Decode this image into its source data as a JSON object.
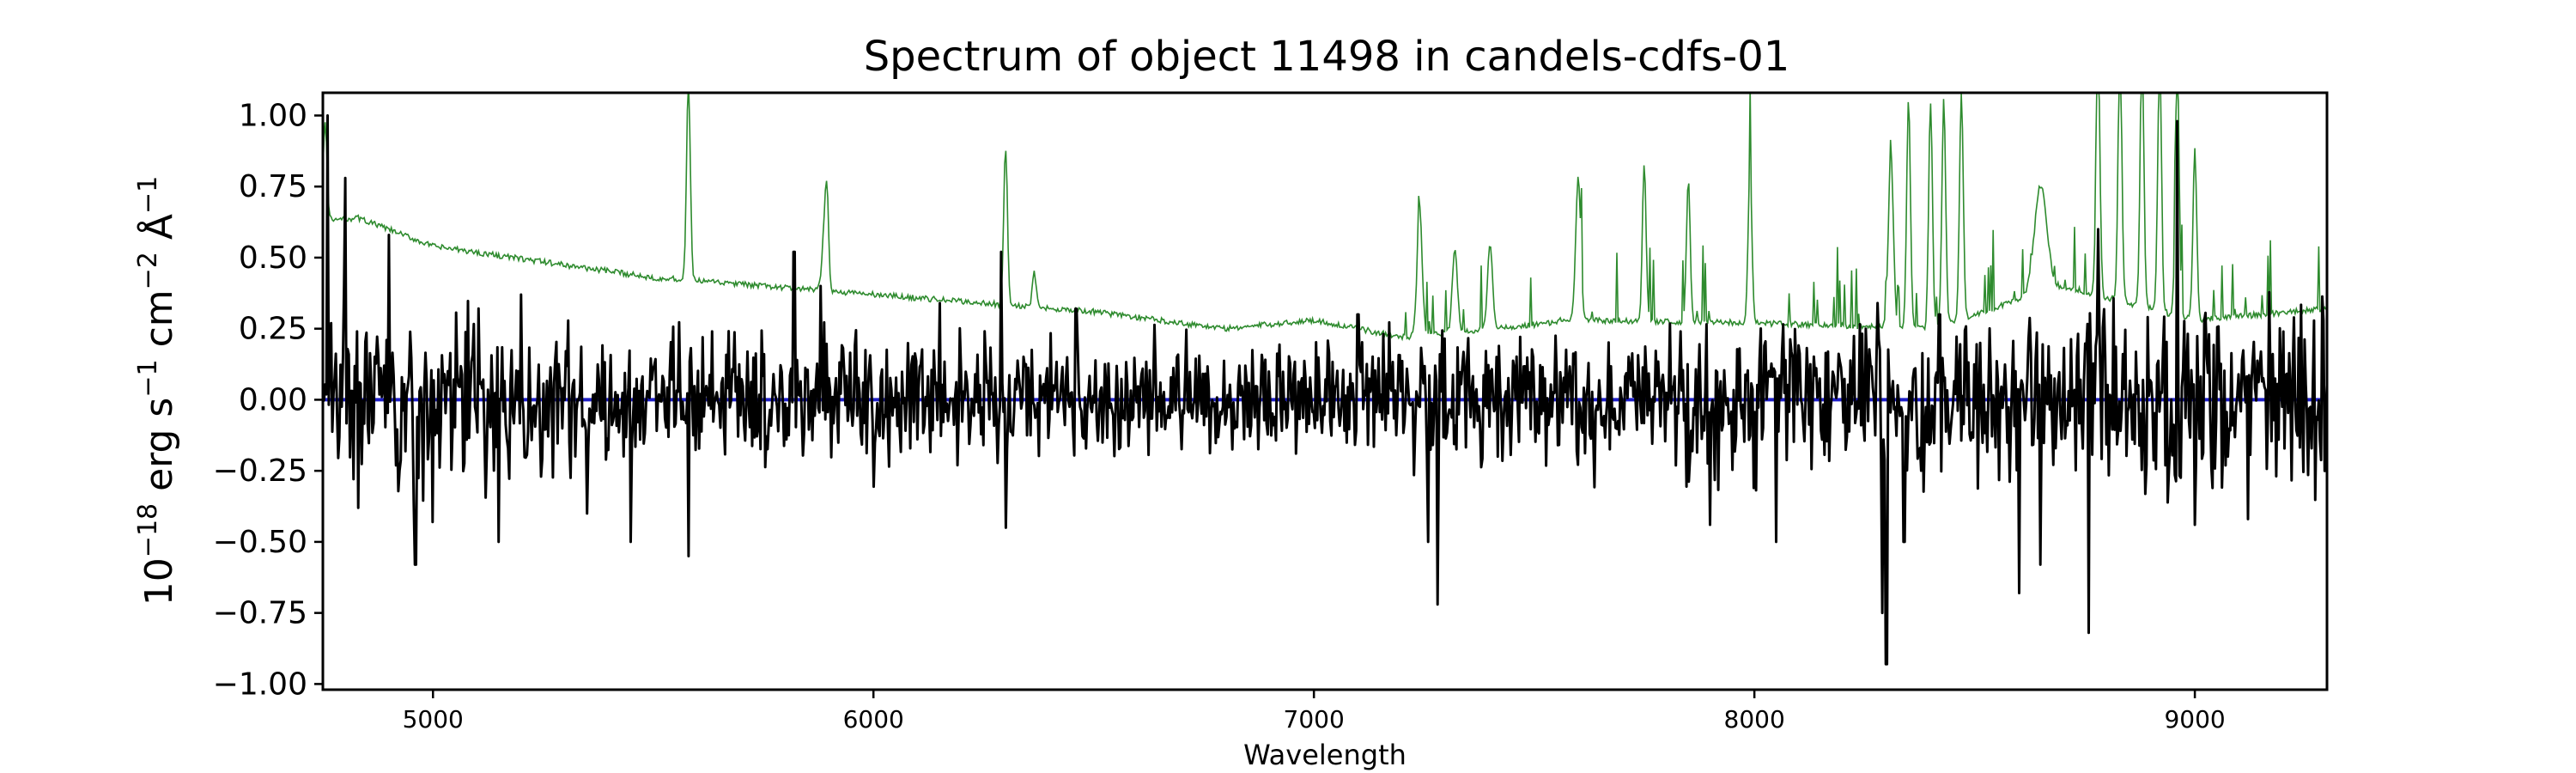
{
  "chart_data": {
    "type": "line",
    "title": "Spectrum of object 11498 in candels-cdfs-01",
    "xlabel": "Wavelength",
    "ylabel": {
      "base": "10",
      "exp1": "−18",
      "unit1": " erg s",
      "exp2": "−1",
      "unit2": " cm",
      "exp3": "−2",
      "unit3": " Å",
      "exp4": "−1"
    },
    "xlim": [
      4750,
      9300
    ],
    "ylim": [
      -1.02,
      1.08
    ],
    "xticks": [
      5000,
      6000,
      7000,
      8000,
      9000
    ],
    "xtick_labels": [
      "5000",
      "6000",
      "7000",
      "8000",
      "9000"
    ],
    "yticks": [
      -1.0,
      -0.75,
      -0.5,
      -0.25,
      0.0,
      0.25,
      0.5,
      0.75,
      1.0
    ],
    "ytick_labels": [
      "−1.00",
      "−0.75",
      "−0.50",
      "−0.25",
      "0.00",
      "0.25",
      "0.50",
      "0.75",
      "1.00"
    ],
    "grid": false,
    "colors": {
      "flux": "#000000",
      "error": "#2e8b2e",
      "model": "#1f1fc8"
    },
    "series": [
      {
        "role": "flux",
        "x_start": 4750,
        "x_end": 9300,
        "n": 1700,
        "noise_seed": 11498,
        "noise_amplitude": [
          [
            4750,
            0.22
          ],
          [
            6000,
            0.17
          ],
          [
            7000,
            0.14
          ],
          [
            7300,
            0.18
          ],
          [
            8300,
            0.22
          ],
          [
            9300,
            0.26
          ]
        ],
        "spikes": [
          [
            4760,
            1.0
          ],
          [
            4800,
            0.78
          ],
          [
            4830,
            -0.38
          ],
          [
            4900,
            0.58
          ],
          [
            4960,
            -0.58
          ],
          [
            5000,
            -0.43
          ],
          [
            5150,
            -0.5
          ],
          [
            5200,
            0.37
          ],
          [
            5350,
            -0.4
          ],
          [
            5450,
            -0.5
          ],
          [
            5580,
            -0.55
          ],
          [
            5820,
            0.52
          ],
          [
            5880,
            0.4
          ],
          [
            6150,
            0.34
          ],
          [
            6290,
            0.52
          ],
          [
            6300,
            -0.45
          ],
          [
            6460,
            0.32
          ],
          [
            7100,
            0.3
          ],
          [
            7260,
            -0.5
          ],
          [
            7280,
            -0.72
          ],
          [
            7900,
            -0.44
          ],
          [
            8050,
            -0.5
          ],
          [
            8280,
            0.34
          ],
          [
            8290,
            -0.75
          ],
          [
            8300,
            -0.93
          ],
          [
            8340,
            -0.5
          ],
          [
            8420,
            0.3
          ],
          [
            8600,
            -0.68
          ],
          [
            8650,
            -0.58
          ],
          [
            8760,
            -0.82
          ],
          [
            8780,
            0.6
          ],
          [
            8960,
            0.98
          ],
          [
            9000,
            -0.44
          ],
          [
            9120,
            -0.42
          ],
          [
            9200,
            0.24
          ]
        ]
      },
      {
        "role": "error",
        "x_start": 4750,
        "x_end": 9300,
        "n": 1700,
        "baseline": [
          [
            4750,
            0.63
          ],
          [
            4830,
            0.64
          ],
          [
            5000,
            0.54
          ],
          [
            5500,
            0.43
          ],
          [
            6000,
            0.37
          ],
          [
            6500,
            0.31
          ],
          [
            6800,
            0.25
          ],
          [
            7000,
            0.28
          ],
          [
            7200,
            0.22
          ],
          [
            7600,
            0.28
          ],
          [
            8000,
            0.27
          ],
          [
            8400,
            0.25
          ],
          [
            8700,
            0.4
          ],
          [
            9000,
            0.28
          ],
          [
            9300,
            0.32
          ]
        ],
        "peaks": [
          [
            4755,
            0.35,
            6
          ],
          [
            5580,
            0.7,
            6
          ],
          [
            5890,
            0.25,
            8
          ],
          [
            5895,
            0.2,
            5
          ],
          [
            6300,
            0.55,
            6
          ],
          [
            6365,
            0.12,
            6
          ],
          [
            7240,
            0.45,
            8
          ],
          [
            7320,
            0.3,
            8
          ],
          [
            7400,
            0.3,
            8
          ],
          [
            7600,
            0.5,
            8
          ],
          [
            7750,
            0.55,
            6
          ],
          [
            7850,
            0.5,
            6
          ],
          [
            7990,
            0.55,
            6
          ],
          [
            8310,
            0.6,
            8
          ],
          [
            8350,
            0.8,
            6
          ],
          [
            8400,
            0.8,
            6
          ],
          [
            8430,
            0.8,
            6
          ],
          [
            8470,
            0.8,
            6
          ],
          [
            8650,
            0.38,
            20
          ],
          [
            8780,
            0.9,
            6
          ],
          [
            8830,
            0.9,
            6
          ],
          [
            8880,
            0.9,
            6
          ],
          [
            8920,
            0.9,
            6
          ],
          [
            8960,
            0.9,
            6
          ],
          [
            9000,
            0.6,
            6
          ]
        ]
      },
      {
        "role": "model",
        "x": [
          4750,
          9300
        ],
        "values": [
          0.0,
          0.0
        ]
      }
    ]
  }
}
